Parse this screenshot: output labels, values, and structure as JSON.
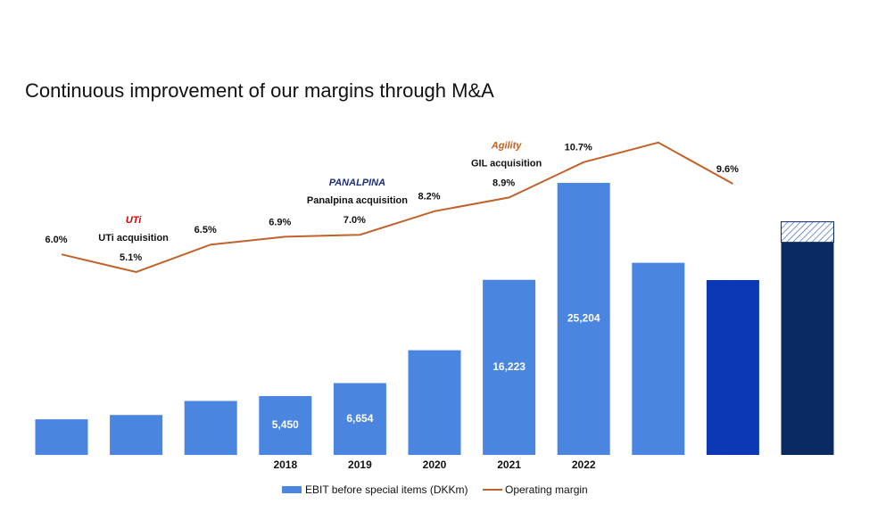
{
  "chart_data": {
    "type": "bar_line",
    "title": "Continuous improvement of our margins through M&A",
    "categories": [
      null,
      null,
      null,
      "2018",
      "2019",
      "2020",
      "2021",
      "2022",
      null,
      null,
      null
    ],
    "series": [
      {
        "name": "EBIT before special items (DKKm)",
        "color": "#4a86e0",
        "bar_colors": [
          "#4a86e0",
          "#4a86e0",
          "#4a86e0",
          "#4a86e0",
          "#4a86e0",
          "#4a86e0",
          "#4a86e0",
          "#4a86e0",
          "#4a86e0",
          "#0d38b5",
          "#0a2a63"
        ],
        "values": [
          3300,
          3700,
          5000,
          5450,
          6654,
          9700,
          16223,
          25204,
          17800,
          16200,
          19700
        ],
        "hatched_values": [
          null,
          null,
          null,
          null,
          null,
          null,
          null,
          null,
          null,
          null,
          1900
        ],
        "value_labels": [
          null,
          null,
          null,
          "5,450",
          "6,654",
          null,
          "16,223",
          "25,204",
          null,
          null,
          null
        ]
      },
      {
        "name": "Operating margin",
        "color": "#c0622a",
        "axis": "y2",
        "values": [
          6.0,
          5.1,
          6.5,
          6.9,
          7.0,
          8.2,
          8.9,
          10.7,
          11.7,
          9.6,
          null
        ],
        "value_labels": [
          "6.0%",
          "5.1%",
          "6.5%",
          "6.9%",
          "7.0%",
          "8.2%",
          "8.9%",
          "10.7%",
          null,
          "9.6%",
          null
        ]
      }
    ],
    "annotations": [
      {
        "logo": "UTi",
        "text": "UTi acquisition",
        "index": 1
      },
      {
        "logo": "PANALPINA",
        "text": "Panalpina acquisition",
        "index": 4
      },
      {
        "logo": "Agility",
        "text": "GIL acquisition",
        "index": 6
      }
    ]
  }
}
